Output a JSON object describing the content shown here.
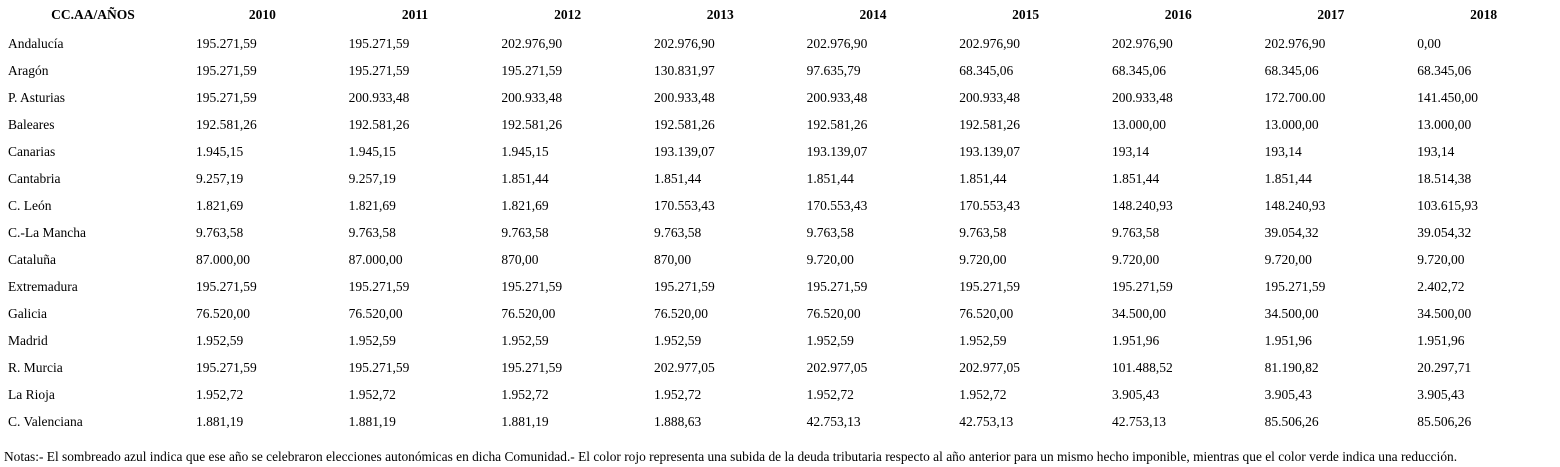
{
  "colors": {
    "background": "#ffffff",
    "text": "#000000"
  },
  "table": {
    "header": [
      "CC.AA/AÑOS",
      "2010",
      "2011",
      "2012",
      "2013",
      "2014",
      "2015",
      "2016",
      "2017",
      "2018"
    ],
    "rows": [
      {
        "label": "Andalucía",
        "values": [
          "195.271,59",
          "195.271,59",
          "202.976,90",
          "202.976,90",
          "202.976,90",
          "202.976,90",
          "202.976,90",
          "202.976,90",
          "0,00"
        ]
      },
      {
        "label": "Aragón",
        "values": [
          "195.271,59",
          "195.271,59",
          "195.271,59",
          "130.831,97",
          "97.635,79",
          "68.345,06",
          "68.345,06",
          "68.345,06",
          "68.345,06"
        ]
      },
      {
        "label": "P. Asturias",
        "values": [
          "195.271,59",
          "200.933,48",
          "200.933,48",
          "200.933,48",
          "200.933,48",
          "200.933,48",
          "200.933,48",
          "172.700.00",
          "141.450,00"
        ]
      },
      {
        "label": "Baleares",
        "values": [
          "192.581,26",
          "192.581,26",
          "192.581,26",
          "192.581,26",
          "192.581,26",
          "192.581,26",
          "13.000,00",
          "13.000,00",
          "13.000,00"
        ]
      },
      {
        "label": "Canarias",
        "values": [
          "1.945,15",
          "1.945,15",
          "1.945,15",
          "193.139,07",
          "193.139,07",
          "193.139,07",
          "193,14",
          "193,14",
          "193,14"
        ]
      },
      {
        "label": "Cantabria",
        "values": [
          "9.257,19",
          "9.257,19",
          "1.851,44",
          "1.851,44",
          "1.851,44",
          "1.851,44",
          "1.851,44",
          "1.851,44",
          "18.514,38"
        ]
      },
      {
        "label": "C. León",
        "values": [
          "1.821,69",
          "1.821,69",
          "1.821,69",
          "170.553,43",
          "170.553,43",
          "170.553,43",
          "148.240,93",
          "148.240,93",
          "103.615,93"
        ]
      },
      {
        "label": "C.-La Mancha",
        "values": [
          "9.763,58",
          "9.763,58",
          "9.763,58",
          "9.763,58",
          "9.763,58",
          "9.763,58",
          "9.763,58",
          "39.054,32",
          "39.054,32"
        ]
      },
      {
        "label": "Cataluña",
        "values": [
          "87.000,00",
          "87.000,00",
          "870,00",
          "870,00",
          "9.720,00",
          "9.720,00",
          "9.720,00",
          "9.720,00",
          "9.720,00"
        ]
      },
      {
        "label": "Extremadura",
        "values": [
          "195.271,59",
          "195.271,59",
          "195.271,59",
          "195.271,59",
          "195.271,59",
          "195.271,59",
          "195.271,59",
          "195.271,59",
          "2.402,72"
        ]
      },
      {
        "label": "Galicia",
        "values": [
          "76.520,00",
          "76.520,00",
          "76.520,00",
          "76.520,00",
          "76.520,00",
          "76.520,00",
          "34.500,00",
          "34.500,00",
          "34.500,00"
        ]
      },
      {
        "label": "Madrid",
        "values": [
          "1.952,59",
          "1.952,59",
          "1.952,59",
          "1.952,59",
          "1.952,59",
          "1.952,59",
          "1.951,96",
          "1.951,96",
          "1.951,96"
        ]
      },
      {
        "label": "R. Murcia",
        "values": [
          "195.271,59",
          "195.271,59",
          "195.271,59",
          "202.977,05",
          "202.977,05",
          "202.977,05",
          "101.488,52",
          "81.190,82",
          "20.297,71"
        ]
      },
      {
        "label": "La Rioja",
        "values": [
          "1.952,72",
          "1.952,72",
          "1.952,72",
          "1.952,72",
          "1.952,72",
          "1.952,72",
          "3.905,43",
          "3.905,43",
          "3.905,43"
        ]
      },
      {
        "label": "C. Valenciana",
        "values": [
          "1.881,19",
          "1.881,19",
          "1.881,19",
          "1.888,63",
          "42.753,13",
          "42.753,13",
          "42.753,13",
          "85.506,26",
          "85.506,26"
        ]
      }
    ]
  },
  "notes": {
    "text": "Notas:- El sombreado azul indica que ese año se celebraron elecciones autonómicas en dicha Comunidad.- El color rojo representa una subida de la deuda tributaria respecto al año anterior para un mismo hecho imponible, mientras que el color verde indica una reducción."
  }
}
